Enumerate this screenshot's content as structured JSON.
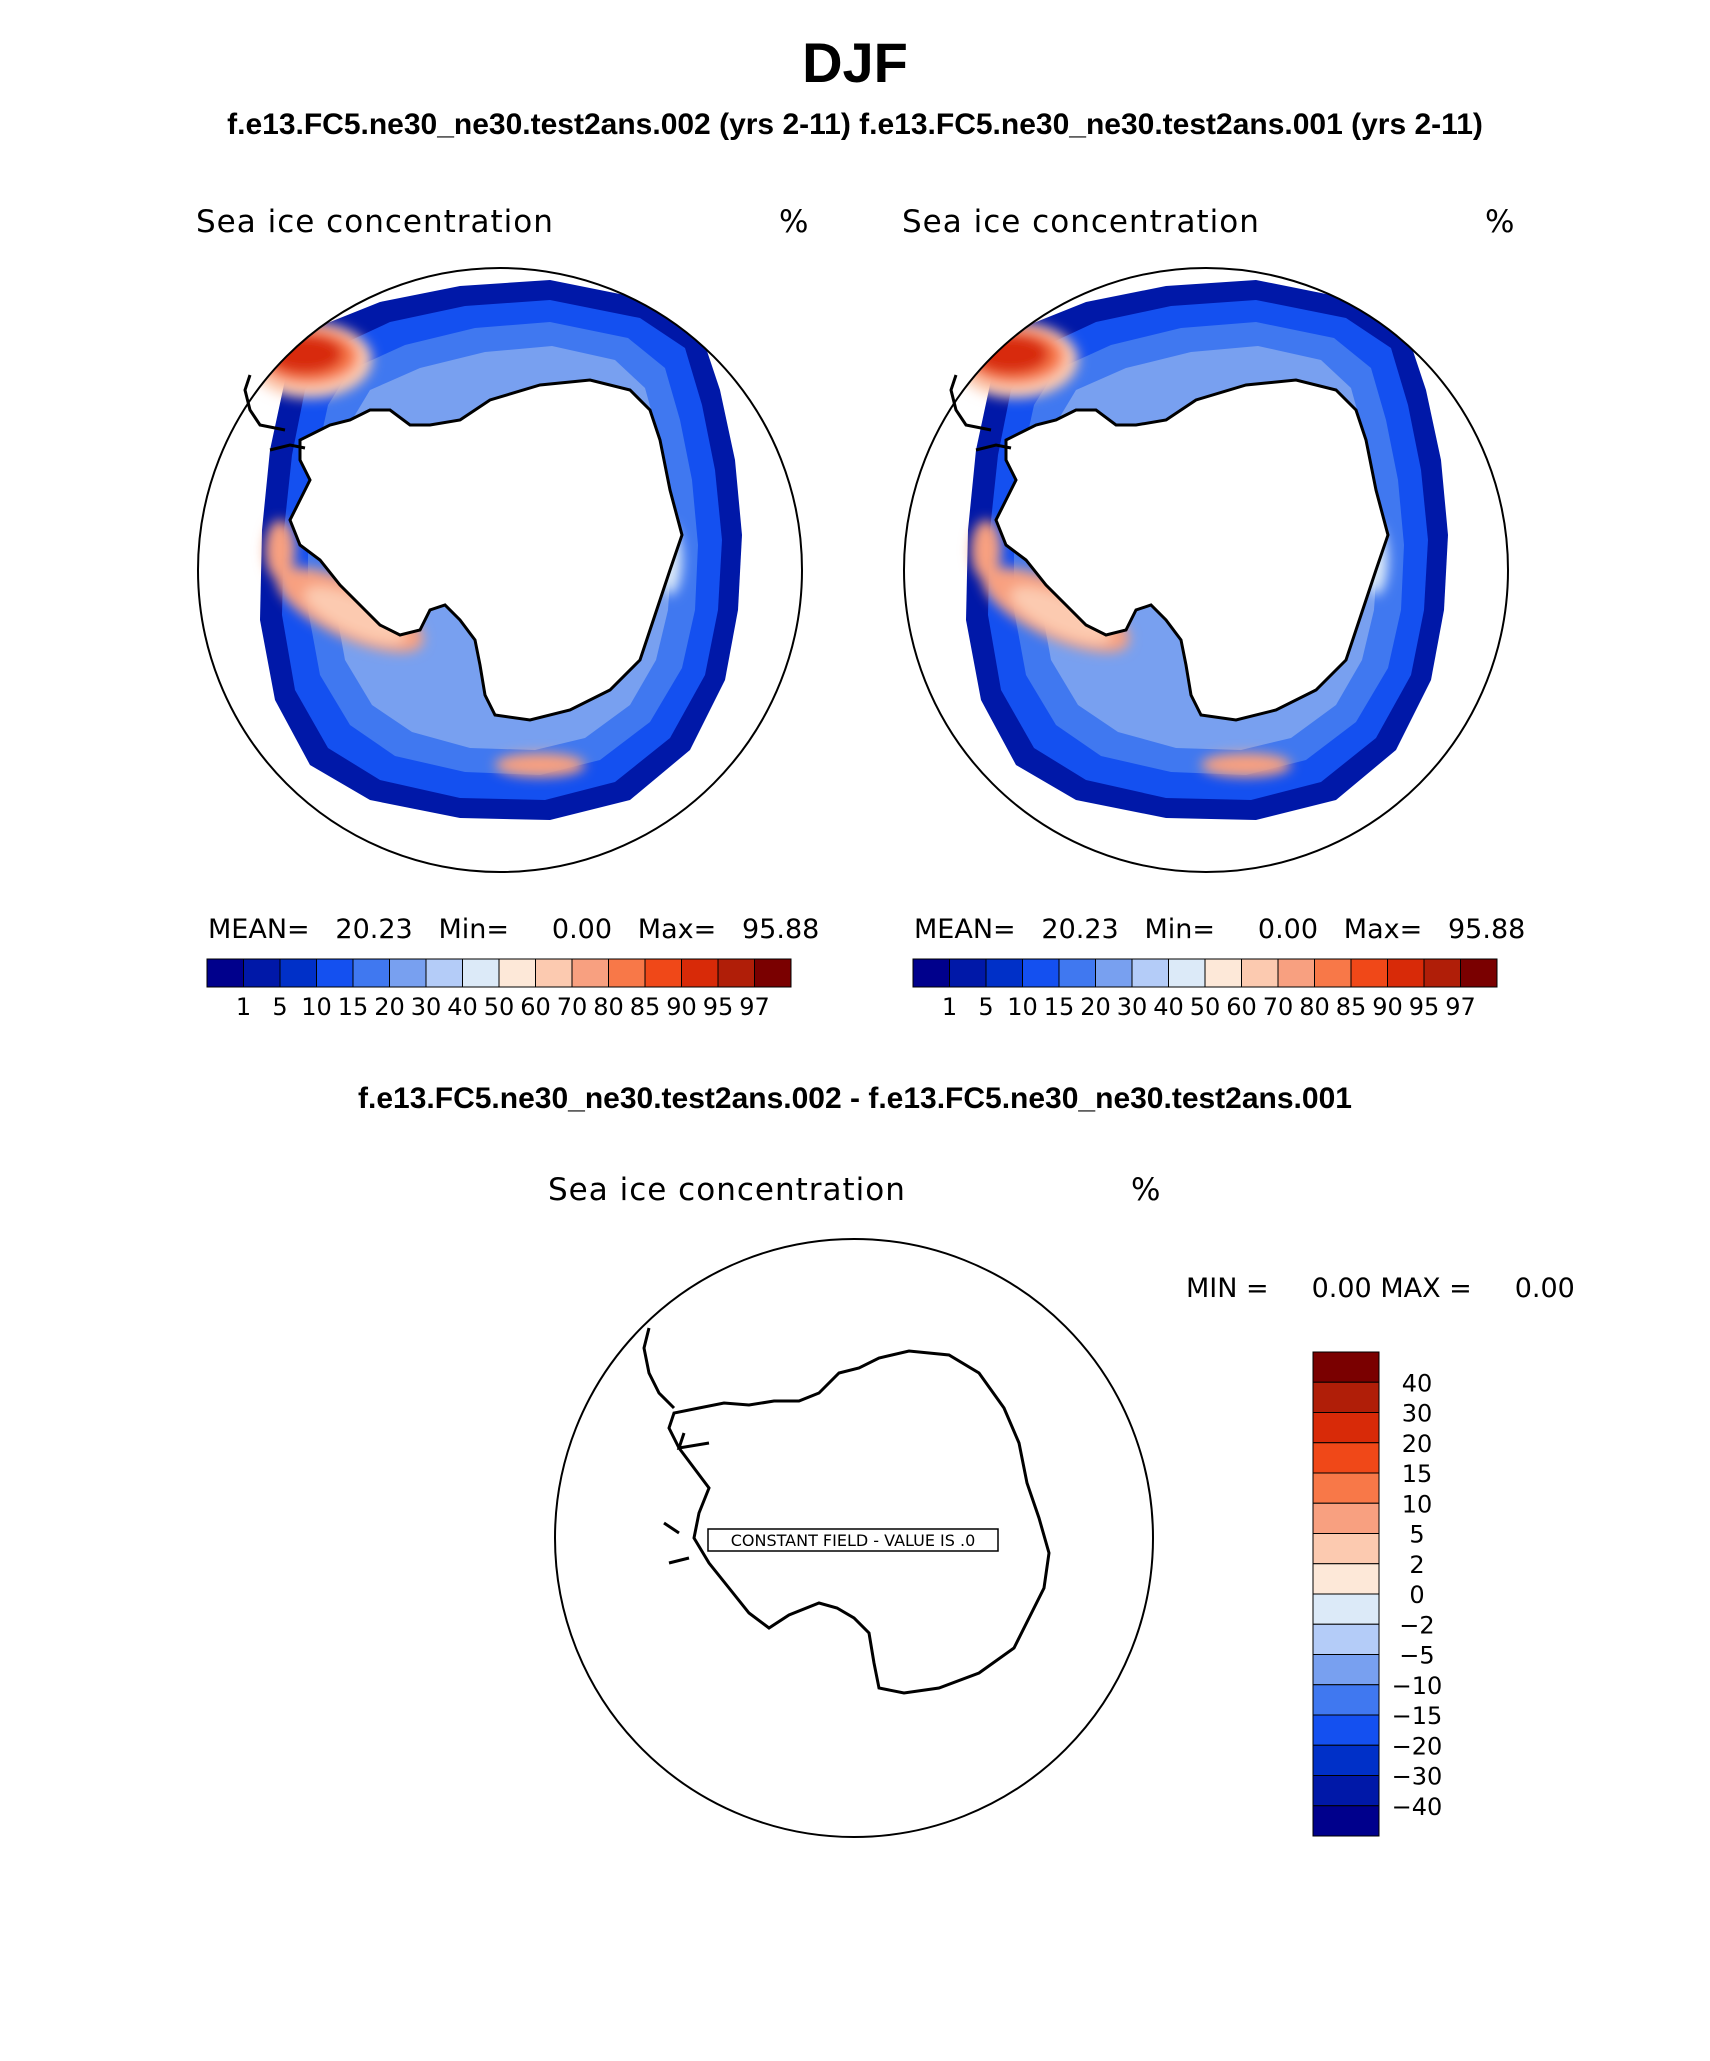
{
  "season": "DJF",
  "case_titles": "f.e13.FC5.ne30_ne30.test2ans.002 (yrs 2-11) f.e13.FC5.ne30_ne30.test2ans.001 (yrs 2-11)",
  "panels": [
    {
      "variable": "Sea ice concentration",
      "units": "%",
      "stats": {
        "mean_label": "MEAN=",
        "mean": "20.23",
        "min_label": "Min=",
        "min": "0.00",
        "max_label": "Max=",
        "max": "95.88"
      }
    },
    {
      "variable": "Sea ice concentration",
      "units": "%",
      "stats": {
        "mean_label": "MEAN=",
        "mean": "20.23",
        "min_label": "Min=",
        "min": "0.00",
        "max_label": "Max=",
        "max": "95.88"
      }
    }
  ],
  "colorbar": {
    "levels": [
      "1",
      "5",
      "10",
      "15",
      "20",
      "30",
      "40",
      "50",
      "60",
      "70",
      "80",
      "85",
      "90",
      "95",
      "97"
    ],
    "colors": [
      "#00008c",
      "#0018a8",
      "#0030c8",
      "#1450f0",
      "#4078f0",
      "#78a0f0",
      "#b4ccf8",
      "#dceaf8",
      "#fde8d8",
      "#fccab0",
      "#f8a080",
      "#f87848",
      "#f04818",
      "#d82a08",
      "#b01e08",
      "#7a0000"
    ]
  },
  "difference": {
    "title": "f.e13.FC5.ne30_ne30.test2ans.002 - f.e13.FC5.ne30_ne30.test2ans.001",
    "variable": "Sea ice concentration",
    "units": "%",
    "min_label": "MIN =",
    "min": "0.00",
    "max_label": "MAX =",
    "max": "0.00",
    "constant_field_label": "CONSTANT FIELD - VALUE IS .0",
    "levels": [
      "40",
      "30",
      "20",
      "15",
      "10",
      "5",
      "2",
      "0",
      "−2",
      "−5",
      "−10",
      "−15",
      "−20",
      "−30",
      "−40"
    ],
    "colors": [
      "#7a0000",
      "#b01e08",
      "#d82a08",
      "#f04818",
      "#f87848",
      "#f8a080",
      "#fccab0",
      "#fde8d8",
      "#dceaf8",
      "#b4ccf8",
      "#78a0f0",
      "#4078f0",
      "#1450f0",
      "#0030c8",
      "#0018a8",
      "#00008c"
    ]
  }
}
